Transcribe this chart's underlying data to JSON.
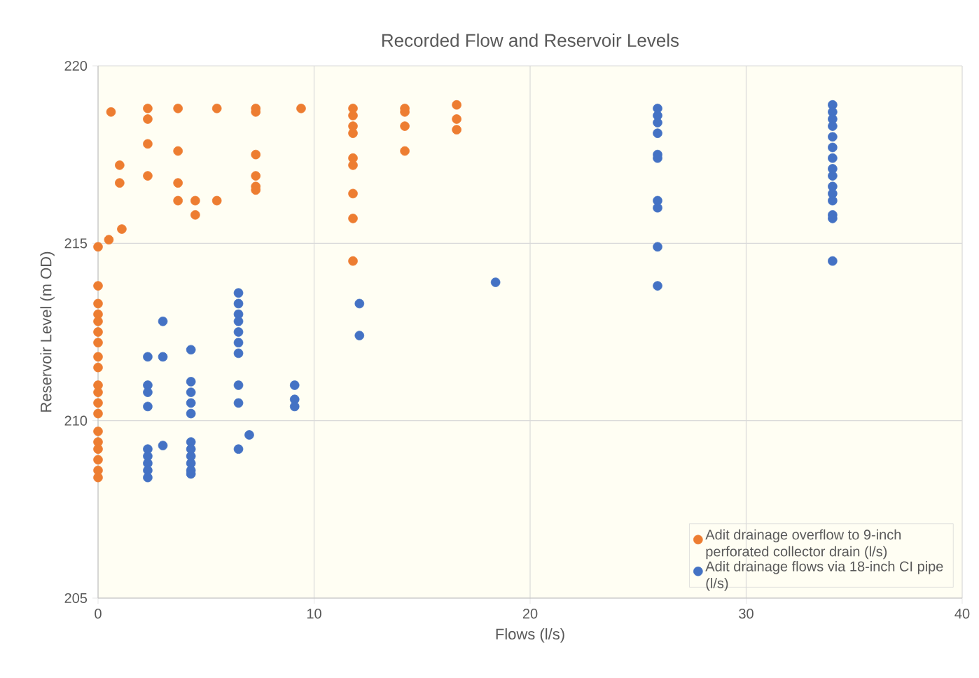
{
  "chart_data": {
    "type": "scatter",
    "title": "Recorded Flow and Reservoir Levels",
    "xlabel": "Flows (l/s)",
    "ylabel": "Reservoir Level (m OD)",
    "xlim": [
      0,
      40
    ],
    "ylim": [
      205,
      220
    ],
    "xticks": [
      0,
      10,
      20,
      30,
      40
    ],
    "yticks": [
      205,
      210,
      215,
      220
    ],
    "grid": true,
    "legend": "bottom right",
    "series": [
      {
        "name": "Adit drainage overflow to 9-inch perforated collector drain (l/s)",
        "color": "#ed7d31",
        "x": [
          0,
          0,
          0,
          0,
          0,
          0,
          0,
          0,
          0,
          0,
          0,
          0,
          0,
          0,
          0,
          0,
          0,
          0,
          0,
          0.5,
          0.6,
          1.0,
          1.0,
          1.1,
          2.3,
          2.3,
          2.3,
          2.3,
          3.7,
          3.7,
          3.7,
          3.7,
          4.5,
          4.5,
          5.5,
          5.5,
          7.3,
          7.3,
          7.3,
          7.3,
          7.3,
          7.3,
          9.4,
          11.8,
          11.8,
          11.8,
          11.8,
          11.8,
          11.8,
          11.8,
          11.8,
          11.8,
          14.2,
          14.2,
          14.2,
          14.2,
          16.6,
          16.6,
          16.6
        ],
        "values": [
          214.9,
          213.8,
          213.3,
          213.0,
          212.8,
          212.5,
          212.2,
          211.8,
          211.5,
          211.0,
          210.8,
          210.5,
          210.2,
          209.7,
          209.4,
          209.2,
          208.9,
          208.6,
          208.4,
          215.1,
          218.7,
          217.2,
          216.7,
          215.4,
          218.8,
          218.5,
          217.8,
          216.9,
          218.8,
          217.6,
          216.7,
          216.2,
          216.2,
          215.8,
          218.8,
          216.2,
          218.8,
          218.7,
          217.5,
          216.9,
          216.6,
          216.5,
          218.8,
          218.8,
          218.6,
          218.3,
          218.1,
          217.4,
          217.2,
          216.4,
          215.7,
          214.5,
          218.8,
          218.7,
          218.3,
          217.6,
          218.9,
          218.5,
          218.2
        ]
      },
      {
        "name": "Adit drainage flows via 18-inch CI pipe (l/s)",
        "color": "#4472c4",
        "x": [
          2.3,
          2.3,
          2.3,
          2.3,
          2.3,
          2.3,
          2.3,
          2.3,
          2.3,
          3.0,
          3.0,
          3.0,
          4.3,
          4.3,
          4.3,
          4.3,
          4.3,
          4.3,
          4.3,
          4.3,
          4.3,
          4.3,
          4.3,
          6.5,
          6.5,
          6.5,
          6.5,
          6.5,
          6.5,
          6.5,
          6.5,
          6.5,
          6.5,
          7.0,
          9.1,
          9.1,
          9.1,
          12.1,
          12.1,
          18.4,
          25.9,
          25.9,
          25.9,
          25.9,
          25.9,
          25.9,
          25.9,
          25.9,
          25.9,
          25.9,
          34.0,
          34.0,
          34.0,
          34.0,
          34.0,
          34.0,
          34.0,
          34.0,
          34.0,
          34.0,
          34.0,
          34.0,
          34.0,
          34.0,
          34.0
        ],
        "values": [
          211.8,
          211.0,
          210.8,
          210.4,
          209.2,
          209.0,
          208.8,
          208.6,
          208.4,
          212.8,
          211.8,
          209.3,
          212.0,
          211.1,
          210.8,
          210.5,
          210.2,
          209.4,
          209.2,
          209.0,
          208.8,
          208.6,
          208.5,
          213.6,
          213.3,
          213.0,
          212.8,
          212.5,
          212.2,
          211.9,
          211.0,
          210.5,
          209.2,
          209.6,
          211.0,
          210.6,
          210.4,
          213.3,
          212.4,
          213.9,
          218.8,
          218.6,
          218.4,
          218.1,
          217.5,
          217.4,
          216.2,
          216.0,
          214.9,
          213.8,
          218.9,
          218.7,
          218.5,
          218.3,
          218.0,
          217.7,
          217.4,
          217.1,
          216.9,
          216.6,
          216.4,
          216.2,
          215.8,
          215.7,
          214.5
        ]
      }
    ]
  }
}
